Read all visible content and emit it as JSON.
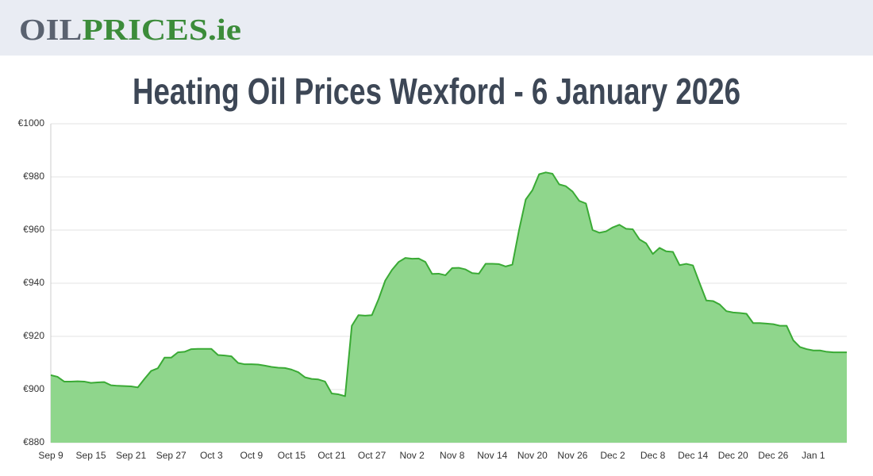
{
  "header": {
    "logo_dark": "OIL",
    "logo_green": "PRICES.ie"
  },
  "chart_data": {
    "type": "area",
    "title": "Heating Oil Prices Wexford - 6 January 2026",
    "color": "#3aaa35",
    "fill": "#8fd68c",
    "grid": true,
    "ylim": [
      880,
      1000
    ],
    "yticks": [
      {
        "value": 880,
        "label": "€880"
      },
      {
        "value": 900,
        "label": "€900"
      },
      {
        "value": 920,
        "label": "€920"
      },
      {
        "value": 940,
        "label": "€940"
      },
      {
        "value": 960,
        "label": "€960"
      },
      {
        "value": 980,
        "label": "€980"
      },
      {
        "value": 1000,
        "label": "€1000"
      }
    ],
    "categories": [
      "Sep 9",
      null,
      null,
      null,
      null,
      null,
      "Sep 15",
      null,
      null,
      null,
      null,
      null,
      "Sep 21",
      null,
      null,
      null,
      null,
      null,
      "Sep 27",
      null,
      null,
      null,
      null,
      null,
      "Oct 3",
      null,
      null,
      null,
      null,
      null,
      "Oct 9",
      null,
      null,
      null,
      null,
      null,
      "Oct 15",
      null,
      null,
      null,
      null,
      null,
      "Oct 21",
      null,
      null,
      null,
      null,
      null,
      "Oct 27",
      null,
      null,
      null,
      null,
      null,
      "Nov 2",
      null,
      null,
      null,
      null,
      null,
      "Nov 8",
      null,
      null,
      null,
      null,
      null,
      "Nov 14",
      null,
      null,
      null,
      null,
      null,
      "Nov 20",
      null,
      null,
      null,
      null,
      null,
      "Nov 26",
      null,
      null,
      null,
      null,
      null,
      "Dec 2",
      null,
      null,
      null,
      null,
      null,
      "Dec 8",
      null,
      null,
      null,
      null,
      null,
      "Dec 14",
      null,
      null,
      null,
      null,
      null,
      "Dec 20",
      null,
      null,
      null,
      null,
      null,
      "Dec 26",
      null,
      null,
      null,
      null,
      null,
      "Jan 1",
      null,
      null,
      null,
      null,
      null
    ],
    "values": [
      905.4,
      904.8,
      903,
      903,
      903.1,
      903,
      902.5,
      902.7,
      902.8,
      901.6,
      901.4,
      901.3,
      901.2,
      900.8,
      904,
      907,
      908,
      912,
      912,
      914,
      914.2,
      915.2,
      915.3,
      915.3,
      915.3,
      913,
      912.8,
      912.5,
      910,
      909.5,
      909.5,
      909.4,
      909,
      908.5,
      908.2,
      908.1,
      907.5,
      906.5,
      904.6,
      904,
      903.8,
      903,
      898.5,
      898.2,
      897.5,
      924,
      928,
      927.8,
      928,
      934,
      941,
      945,
      948,
      949.5,
      949.2,
      949.3,
      948,
      943.5,
      943.6,
      943,
      945.7,
      945.8,
      945.2,
      943.8,
      943.6,
      947.3,
      947.3,
      947.2,
      946.3,
      947,
      960,
      971.5,
      975,
      981,
      981.7,
      981.2,
      977.2,
      976.5,
      974.5,
      971,
      970,
      960,
      959,
      959.5,
      961,
      962,
      960.5,
      960.3,
      956.5,
      955,
      951,
      953.3,
      952,
      951.8,
      946.8,
      947.3,
      946.7,
      940,
      933.5,
      933.3,
      932,
      929.5,
      929,
      928.8,
      928.5,
      925,
      925,
      924.8,
      924.6,
      924,
      924,
      918.5,
      916,
      915.2,
      914.7,
      914.7,
      914.2,
      914,
      914,
      914
    ]
  }
}
